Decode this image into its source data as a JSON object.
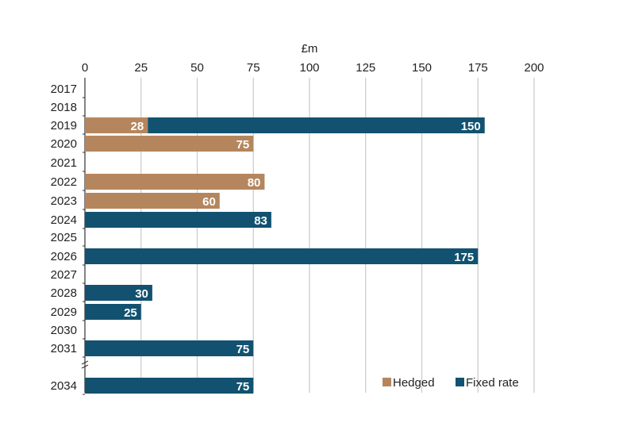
{
  "chart_data": {
    "type": "bar",
    "orientation": "horizontal",
    "stacked": true,
    "xlabel": "£m",
    "xlim": [
      0,
      200
    ],
    "x_ticks": [
      0,
      25,
      50,
      75,
      100,
      125,
      150,
      175,
      200
    ],
    "grid": true,
    "legend_position": "bottom-right",
    "categories": [
      "2017",
      "2018",
      "2019",
      "2020",
      "2021",
      "2022",
      "2023",
      "2024",
      "2025",
      "2026",
      "2027",
      "2028",
      "2029",
      "2030",
      "2031",
      "2034"
    ],
    "series": [
      {
        "name": "Hedged",
        "color": "#b5865d",
        "values": [
          null,
          null,
          28,
          75,
          null,
          80,
          60,
          null,
          null,
          null,
          null,
          null,
          null,
          null,
          null,
          null
        ]
      },
      {
        "name": "Fixed rate",
        "color": "#125270",
        "values": [
          null,
          null,
          150,
          null,
          null,
          null,
          null,
          83,
          null,
          175,
          null,
          30,
          25,
          null,
          75,
          75
        ]
      }
    ]
  }
}
